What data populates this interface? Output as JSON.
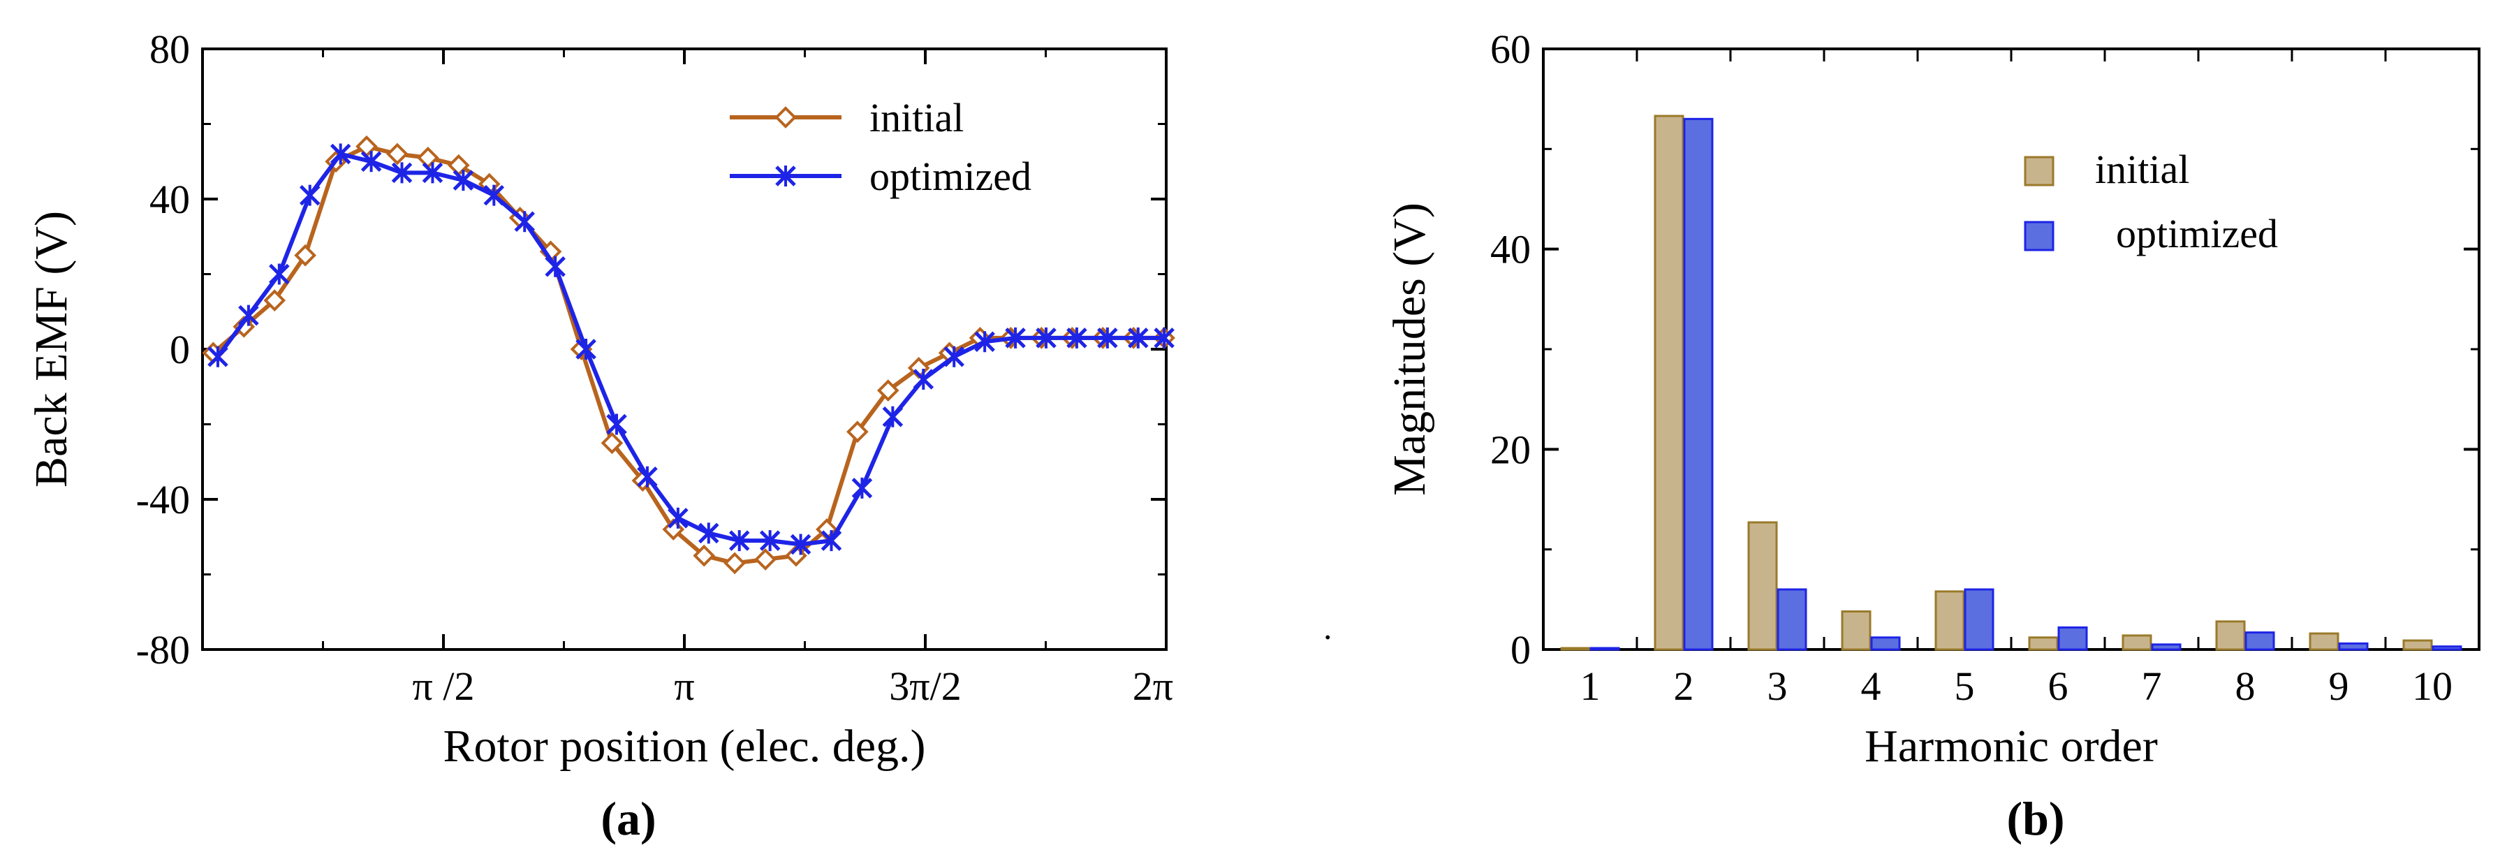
{
  "colors": {
    "initial_line": "#B8641E",
    "optimized_line": "#1E24E6",
    "initial_bar": "#C8B48C",
    "optimized_bar": "#5B6FE0",
    "bar_edge_initial": "#9A7A2A",
    "bar_edge_optimized": "#1E24E6"
  },
  "markers": {
    "initial": "diamond-icon",
    "optimized": "asterisk-cross-icon"
  },
  "chart_data": [
    {
      "type": "line",
      "panel_label": "(a)",
      "xlabel": "Rotor position (elec. deg.)",
      "ylabel": "Back EMF (V)",
      "xlim": [
        0,
        6.2832
      ],
      "ylim": [
        -80,
        80
      ],
      "x_ticks": [
        {
          "value": 1.5708,
          "label": "π /2"
        },
        {
          "value": 3.1416,
          "label": "π"
        },
        {
          "value": 4.7124,
          "label": "3π/2"
        },
        {
          "value": 6.2832,
          "label": "2π"
        }
      ],
      "x_minor_ticks": [
        0.7854,
        2.3562,
        3.927,
        5.4978
      ],
      "y_ticks": [
        {
          "value": 80,
          "label": "80"
        },
        {
          "value": 40,
          "label": "40"
        },
        {
          "value": 0,
          "label": "0"
        },
        {
          "value": -40,
          "label": "-40"
        },
        {
          "value": -80,
          "label": "-80"
        }
      ],
      "legend": {
        "position": "top-right",
        "entries": [
          "initial",
          "optimized"
        ]
      },
      "series": [
        {
          "name": "initial",
          "x": [
            0.07,
            0.27,
            0.47,
            0.67,
            0.87,
            1.07,
            1.27,
            1.47,
            1.67,
            1.87,
            2.07,
            2.27,
            2.47,
            2.67,
            2.87,
            3.07,
            3.27,
            3.47,
            3.67,
            3.87,
            4.07,
            4.27,
            4.47,
            4.67,
            4.87,
            5.07,
            5.27,
            5.47,
            5.67,
            5.87,
            6.07,
            6.27
          ],
          "y": [
            -1,
            6,
            13,
            25,
            50,
            54,
            52,
            51,
            49,
            44,
            35,
            26,
            0,
            -25,
            -35,
            -48,
            -55,
            -57,
            -56,
            -55,
            -48,
            -22,
            -11,
            -5,
            -1,
            3,
            3,
            3,
            3,
            3,
            3,
            3
          ]
        },
        {
          "name": "optimized",
          "x": [
            0.1,
            0.3,
            0.5,
            0.7,
            0.9,
            1.1,
            1.3,
            1.5,
            1.7,
            1.9,
            2.1,
            2.3,
            2.5,
            2.7,
            2.9,
            3.1,
            3.3,
            3.5,
            3.7,
            3.9,
            4.1,
            4.3,
            4.5,
            4.7,
            4.9,
            5.1,
            5.3,
            5.5,
            5.7,
            5.9,
            6.1,
            6.27
          ],
          "y": [
            -2,
            9,
            20,
            41,
            52,
            50,
            47,
            47,
            45,
            41,
            34,
            22,
            0,
            -20,
            -34,
            -45,
            -49,
            -51,
            -51,
            -52,
            -51,
            -37,
            -18,
            -8,
            -2,
            2,
            3,
            3,
            3,
            3,
            3,
            3
          ]
        }
      ]
    },
    {
      "type": "bar",
      "panel_label": "(b)",
      "xlabel": "Harmonic order",
      "ylabel": "Magnitudes (V)",
      "ylim": [
        0,
        60
      ],
      "categories": [
        "1",
        "2",
        "3",
        "4",
        "5",
        "6",
        "7",
        "8",
        "9",
        "10"
      ],
      "y_ticks": [
        {
          "value": 0,
          "label": "0"
        },
        {
          "value": 20,
          "label": "20"
        },
        {
          "value": 40,
          "label": "40"
        },
        {
          "value": 60,
          "label": "60"
        }
      ],
      "legend": {
        "position": "top-right",
        "entries": [
          "initial",
          "optimized"
        ]
      },
      "series": [
        {
          "name": "initial",
          "values": [
            0.1,
            53.3,
            12.7,
            3.8,
            5.8,
            1.2,
            1.4,
            2.8,
            1.6,
            0.9
          ]
        },
        {
          "name": "optimized",
          "values": [
            0.1,
            53.0,
            6.0,
            1.2,
            6.0,
            2.2,
            0.5,
            1.7,
            0.6,
            0.3
          ]
        }
      ]
    }
  ],
  "stray_mark": "."
}
